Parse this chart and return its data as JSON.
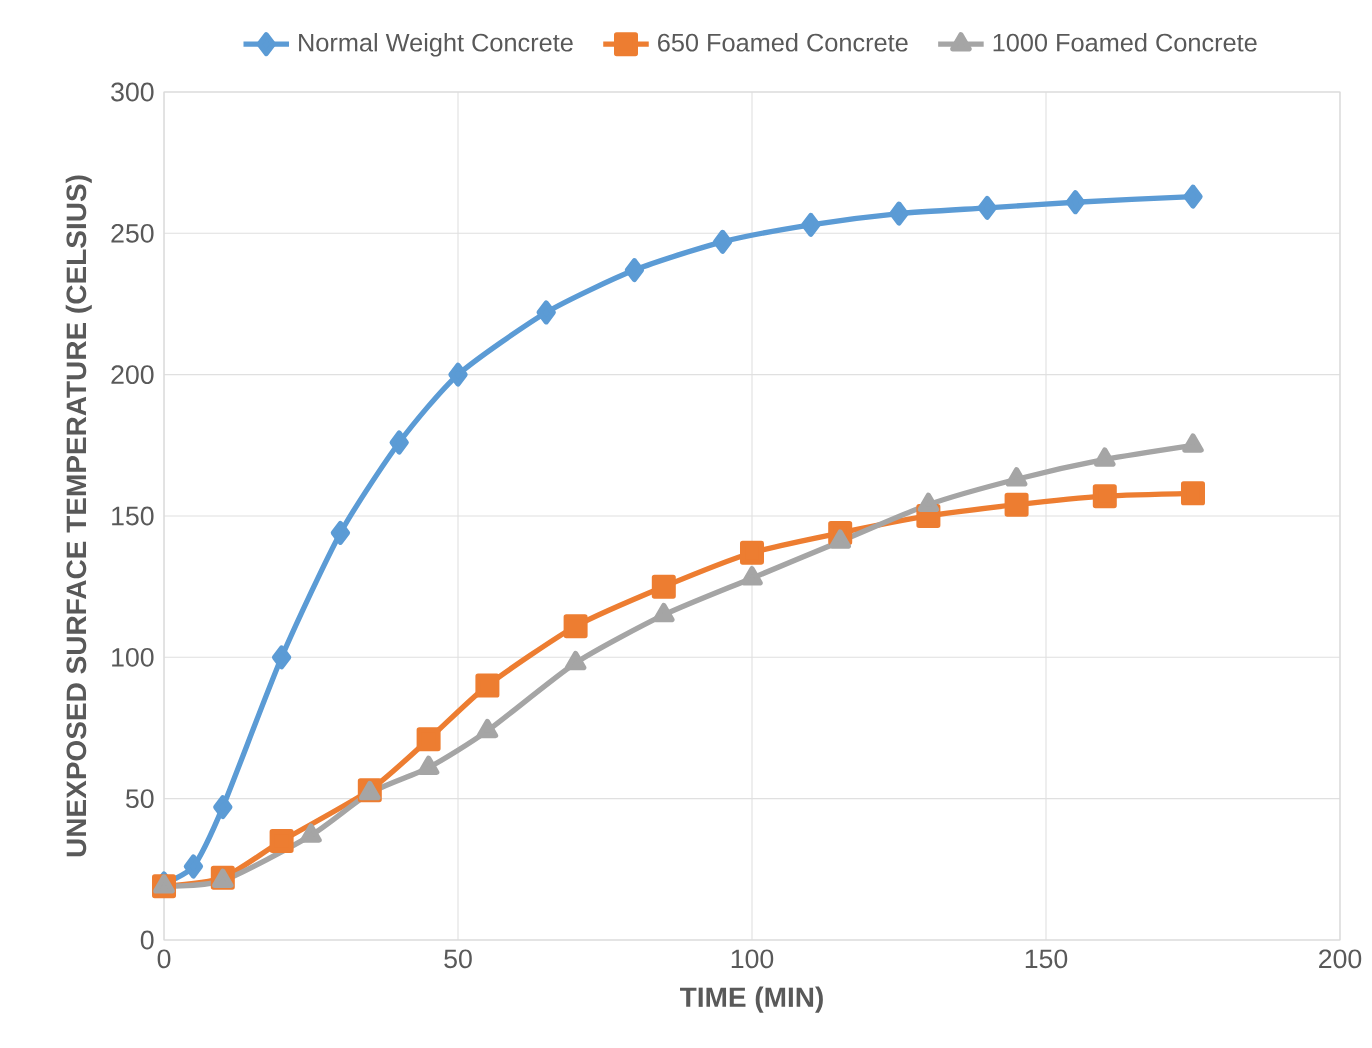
{
  "chart_data": {
    "type": "line",
    "xlabel": "TIME (MIN)",
    "ylabel": "UNEXPOSED SURFACE TEMPERATURE (CELSIUS)",
    "xlim": [
      0,
      200
    ],
    "ylim": [
      0,
      300
    ],
    "xticks": [
      0,
      50,
      100,
      150,
      200
    ],
    "yticks": [
      0,
      50,
      100,
      150,
      200,
      250,
      300
    ],
    "grid": true,
    "legend": "top",
    "line_style": "solid",
    "series": [
      {
        "name": "Normal Weight Concrete",
        "color": "#5b9bd5",
        "marker": "diamond",
        "x": [
          0,
          5,
          10,
          20,
          30,
          40,
          50,
          65,
          80,
          95,
          110,
          125,
          140,
          155,
          175
        ],
        "values": [
          20,
          26,
          47,
          100,
          144,
          176,
          200,
          222,
          237,
          247,
          253,
          257,
          259,
          261,
          263
        ]
      },
      {
        "name": "650 Foamed Concrete",
        "color": "#ed7d31",
        "marker": "square",
        "x": [
          0,
          10,
          20,
          35,
          45,
          55,
          70,
          85,
          100,
          115,
          130,
          145,
          160,
          175
        ],
        "values": [
          19,
          22,
          35,
          53,
          71,
          90,
          111,
          125,
          137,
          144,
          150,
          154,
          157,
          158
        ]
      },
      {
        "name": "1000 Foamed Concrete",
        "color": "#a5a5a5",
        "marker": "triangle",
        "x": [
          0,
          10,
          25,
          35,
          45,
          55,
          70,
          85,
          100,
          115,
          130,
          145,
          160,
          175
        ],
        "values": [
          19,
          21,
          37,
          52,
          61,
          74,
          98,
          115,
          128,
          141,
          154,
          163,
          170,
          175
        ]
      }
    ]
  }
}
